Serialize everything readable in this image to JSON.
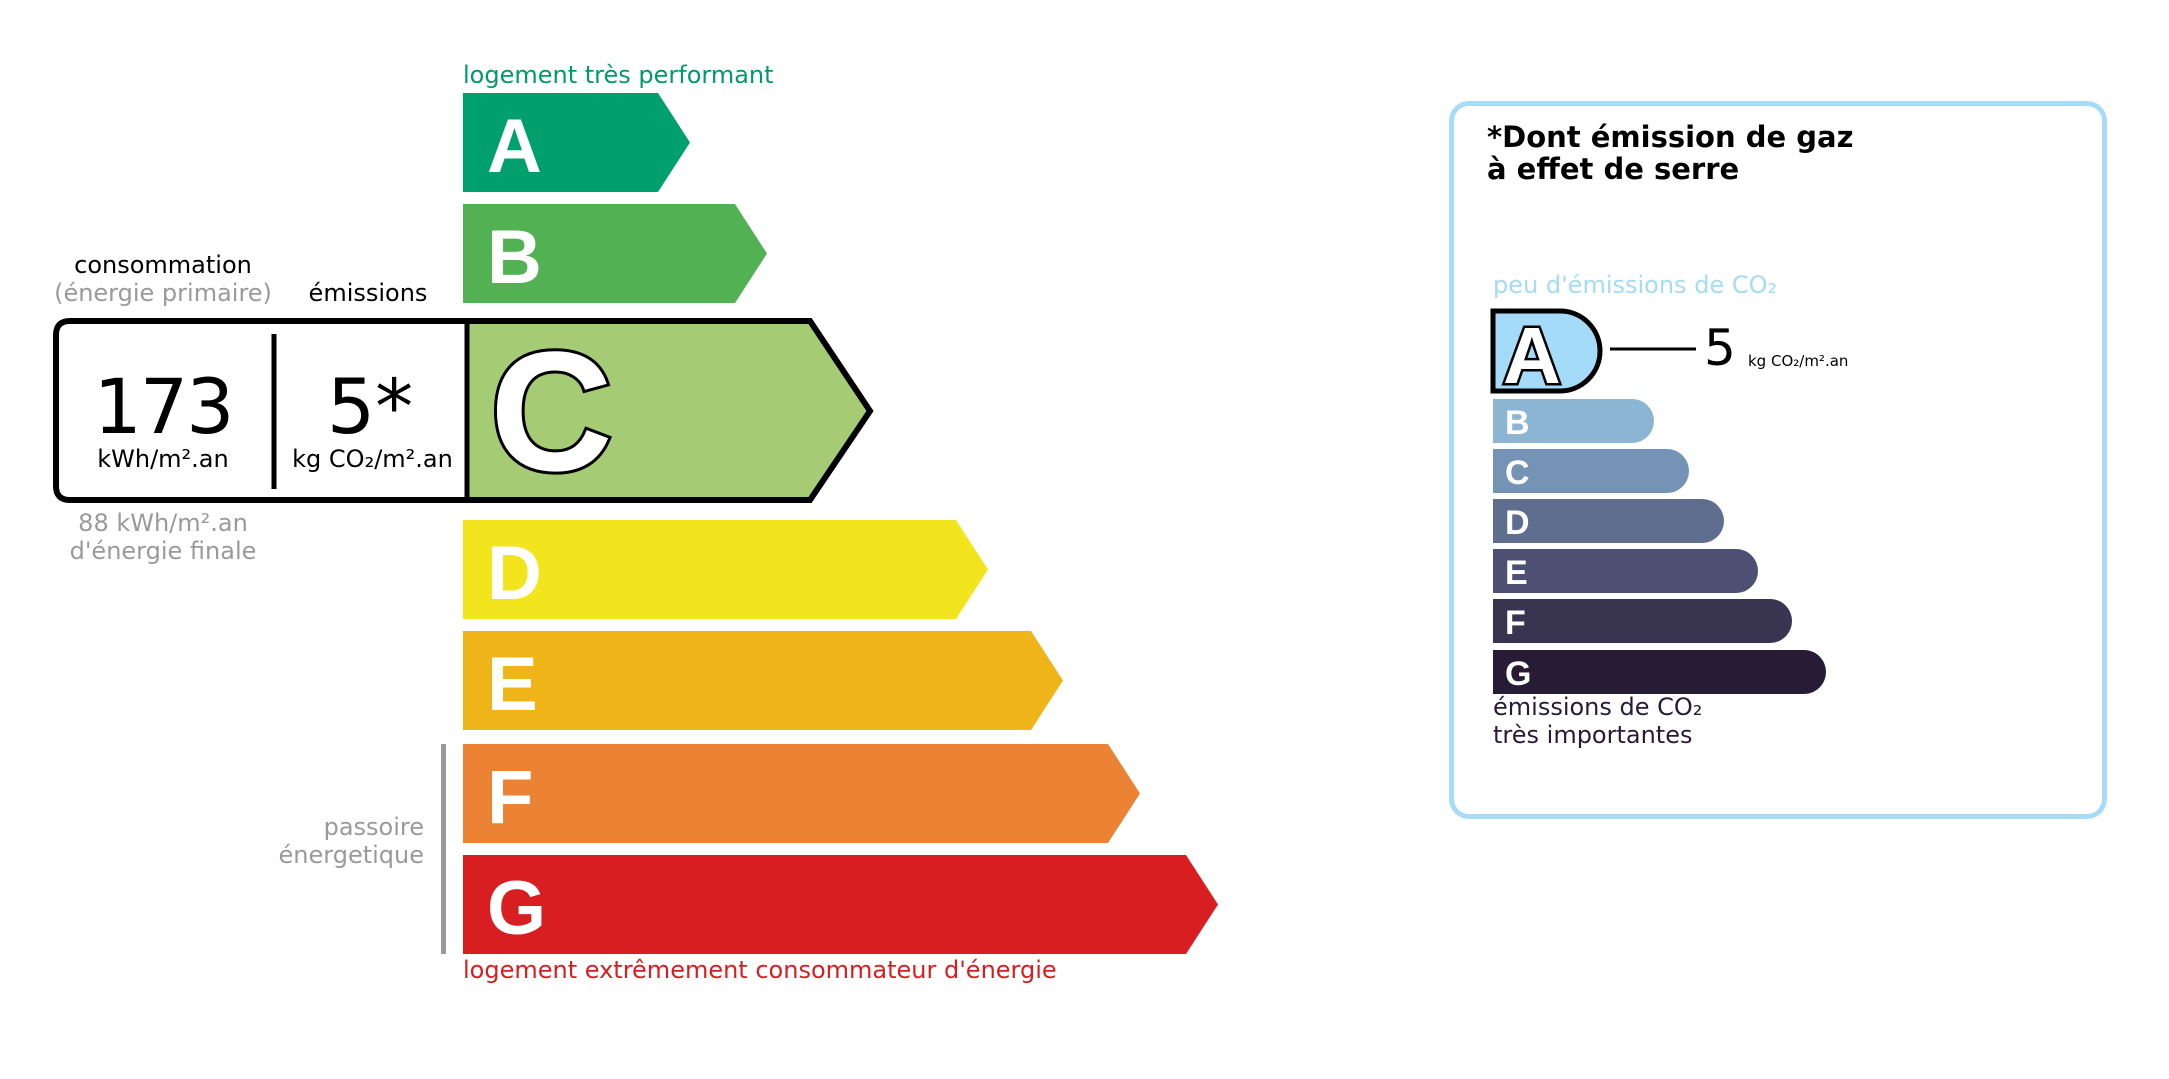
{
  "energy": {
    "top_label": "logement très performant",
    "bottom_label": "logement extrêmement consommateur d'énergie",
    "passoire_label": [
      "passoire",
      "énergetique"
    ],
    "current_class": "C",
    "classes": [
      {
        "letter": "A",
        "color": "#00a06d"
      },
      {
        "letter": "B",
        "color": "#52b153"
      },
      {
        "letter": "C",
        "color": "#a5cc74"
      },
      {
        "letter": "D",
        "color": "#f2e51d"
      },
      {
        "letter": "E",
        "color": "#efb418"
      },
      {
        "letter": "F",
        "color": "#eb8234"
      },
      {
        "letter": "G",
        "color": "#d81e20"
      }
    ],
    "consumption_header": "consommation",
    "consumption_subheader": "(énergie primaire)",
    "emissions_header": "émissions",
    "consumption_value": "173",
    "consumption_unit": "kWh/m².an",
    "emissions_value": "5*",
    "emissions_unit": "kg CO₂/m².an",
    "final_energy_value": "88 kWh/m².an",
    "final_energy_label": "d'énergie finale"
  },
  "ges": {
    "title_line1": "*Dont émission de gaz",
    "title_line2": "à effet de serre",
    "top_label": "peu d'émissions de CO₂",
    "bottom_label_line1": "émissions de CO₂",
    "bottom_label_line2": "très importantes",
    "current_class": "A",
    "value": "5",
    "unit": "kg CO₂/m².an",
    "border_color": "#a8dbf5",
    "classes": [
      {
        "letter": "A",
        "color": "#a4dbf8"
      },
      {
        "letter": "B",
        "color": "#8cb4d3"
      },
      {
        "letter": "C",
        "color": "#7593b4"
      },
      {
        "letter": "D",
        "color": "#5f6d8f"
      },
      {
        "letter": "E",
        "color": "#4d5072"
      },
      {
        "letter": "F",
        "color": "#393551"
      },
      {
        "letter": "G",
        "color": "#281b35"
      }
    ]
  }
}
